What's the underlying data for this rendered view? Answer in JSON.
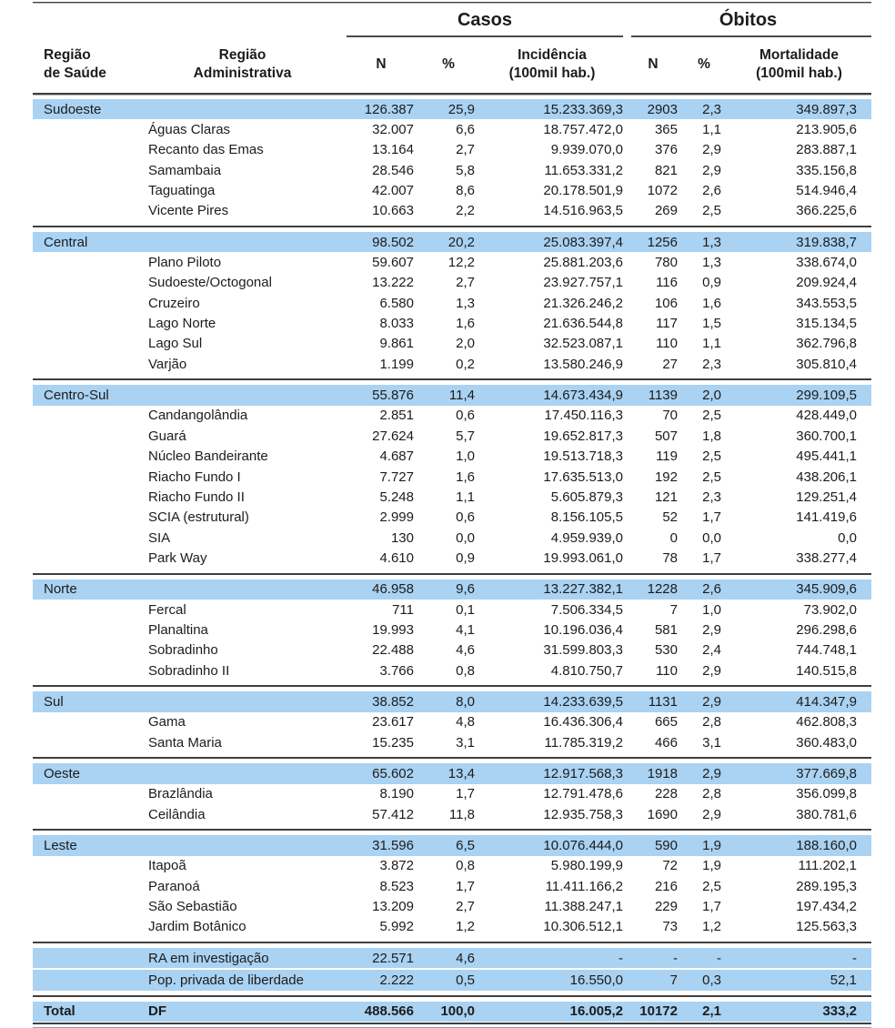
{
  "colors": {
    "highlight": "#aad2f2",
    "rule": "#3f3f3f",
    "rule_light": "#b5b5b5",
    "text": "#1c1c1c"
  },
  "header": {
    "casos": "Casos",
    "obitos": "Óbitos",
    "col_regiao_saude": "Região\nde Saúde",
    "col_regiao_admin": "Região\nAdministrativa",
    "col_n": "N",
    "col_pct": "%",
    "col_incidencia": "Incidência\n(100mil hab.)",
    "col_n2": "N",
    "col_pct2": "%",
    "col_mortalidade": "Mortalidade\n(100mil hab.)"
  },
  "chart_data": {
    "type": "table",
    "column_groups": [
      {
        "label": "Casos",
        "span": 3
      },
      {
        "label": "Óbitos",
        "span": 3
      }
    ],
    "columns": [
      "Região de Saúde",
      "Região Administrativa",
      "N",
      "%",
      "Incidência (100mil hab.)",
      "N",
      "%",
      "Mortalidade (100mil hab.)"
    ],
    "sections": [
      {
        "region": "Sudoeste",
        "summary": [
          "126.387",
          "25,9",
          "15.233.369,3",
          "2903",
          "2,3",
          "349.897,3"
        ],
        "rows": [
          [
            "Águas Claras",
            "32.007",
            "6,6",
            "18.757.472,0",
            "365",
            "1,1",
            "213.905,6"
          ],
          [
            "Recanto das Emas",
            "13.164",
            "2,7",
            "9.939.070,0",
            "376",
            "2,9",
            "283.887,1"
          ],
          [
            "Samambaia",
            "28.546",
            "5,8",
            "11.653.331,2",
            "821",
            "2,9",
            "335.156,8"
          ],
          [
            "Taguatinga",
            "42.007",
            "8,6",
            "20.178.501,9",
            "1072",
            "2,6",
            "514.946,4"
          ],
          [
            "Vicente Pires",
            "10.663",
            "2,2",
            "14.516.963,5",
            "269",
            "2,5",
            "366.225,6"
          ]
        ]
      },
      {
        "region": "Central",
        "summary": [
          "98.502",
          "20,2",
          "25.083.397,4",
          "1256",
          "1,3",
          "319.838,7"
        ],
        "rows": [
          [
            "Plano Piloto",
            "59.607",
            "12,2",
            "25.881.203,6",
            "780",
            "1,3",
            "338.674,0"
          ],
          [
            "Sudoeste/Octogonal",
            "13.222",
            "2,7",
            "23.927.757,1",
            "116",
            "0,9",
            "209.924,4"
          ],
          [
            "Cruzeiro",
            "6.580",
            "1,3",
            "21.326.246,2",
            "106",
            "1,6",
            "343.553,5"
          ],
          [
            "Lago Norte",
            "8.033",
            "1,6",
            "21.636.544,8",
            "117",
            "1,5",
            "315.134,5"
          ],
          [
            "Lago Sul",
            "9.861",
            "2,0",
            "32.523.087,1",
            "110",
            "1,1",
            "362.796,8"
          ],
          [
            "Varjão",
            "1.199",
            "0,2",
            "13.580.246,9",
            "27",
            "2,3",
            "305.810,4"
          ]
        ]
      },
      {
        "region": "Centro-Sul",
        "summary": [
          "55.876",
          "11,4",
          "14.673.434,9",
          "1139",
          "2,0",
          "299.109,5"
        ],
        "rows": [
          [
            "Candangolândia",
            "2.851",
            "0,6",
            "17.450.116,3",
            "70",
            "2,5",
            "428.449,0"
          ],
          [
            "Guará",
            "27.624",
            "5,7",
            "19.652.817,3",
            "507",
            "1,8",
            "360.700,1"
          ],
          [
            "Núcleo Bandeirante",
            "4.687",
            "1,0",
            "19.513.718,3",
            "119",
            "2,5",
            "495.441,1"
          ],
          [
            "Riacho Fundo I",
            "7.727",
            "1,6",
            "17.635.513,0",
            "192",
            "2,5",
            "438.206,1"
          ],
          [
            "Riacho Fundo II",
            "5.248",
            "1,1",
            "5.605.879,3",
            "121",
            "2,3",
            "129.251,4"
          ],
          [
            "SCIA (estrutural)",
            "2.999",
            "0,6",
            "8.156.105,5",
            "52",
            "1,7",
            "141.419,6"
          ],
          [
            "SIA",
            "130",
            "0,0",
            "4.959.939,0",
            "0",
            "0,0",
            "0,0"
          ],
          [
            "Park Way",
            "4.610",
            "0,9",
            "19.993.061,0",
            "78",
            "1,7",
            "338.277,4"
          ]
        ]
      },
      {
        "region": "Norte",
        "summary": [
          "46.958",
          "9,6",
          "13.227.382,1",
          "1228",
          "2,6",
          "345.909,6"
        ],
        "rows": [
          [
            "Fercal",
            "711",
            "0,1",
            "7.506.334,5",
            "7",
            "1,0",
            "73.902,0"
          ],
          [
            "Planaltina",
            "19.993",
            "4,1",
            "10.196.036,4",
            "581",
            "2,9",
            "296.298,6"
          ],
          [
            "Sobradinho",
            "22.488",
            "4,6",
            "31.599.803,3",
            "530",
            "2,4",
            "744.748,1"
          ],
          [
            "Sobradinho II",
            "3.766",
            "0,8",
            "4.810.750,7",
            "110",
            "2,9",
            "140.515,8"
          ]
        ]
      },
      {
        "region": "Sul",
        "summary": [
          "38.852",
          "8,0",
          "14.233.639,5",
          "1131",
          "2,9",
          "414.347,9"
        ],
        "rows": [
          [
            "Gama",
            "23.617",
            "4,8",
            "16.436.306,4",
            "665",
            "2,8",
            "462.808,3"
          ],
          [
            "Santa Maria",
            "15.235",
            "3,1",
            "11.785.319,2",
            "466",
            "3,1",
            "360.483,0"
          ]
        ]
      },
      {
        "region": "Oeste",
        "summary": [
          "65.602",
          "13,4",
          "12.917.568,3",
          "1918",
          "2,9",
          "377.669,8"
        ],
        "rows": [
          [
            "Brazlândia",
            "8.190",
            "1,7",
            "12.791.478,6",
            "228",
            "2,8",
            "356.099,8"
          ],
          [
            "Ceilândia",
            "57.412",
            "11,8",
            "12.935.758,3",
            "1690",
            "2,9",
            "380.781,6"
          ]
        ]
      },
      {
        "region": "Leste",
        "summary": [
          "31.596",
          "6,5",
          "10.076.444,0",
          "590",
          "1,9",
          "188.160,0"
        ],
        "rows": [
          [
            "Itapoã",
            "3.872",
            "0,8",
            "5.980.199,9",
            "72",
            "1,9",
            "111.202,1"
          ],
          [
            "Paranoá",
            "8.523",
            "1,7",
            "11.411.166,2",
            "216",
            "2,5",
            "289.195,3"
          ],
          [
            "São Sebastião",
            "13.209",
            "2,7",
            "11.388.247,1",
            "229",
            "1,7",
            "197.434,2"
          ],
          [
            "Jardim Botânico",
            "5.992",
            "1,2",
            "10.306.512,1",
            "73",
            "1,2",
            "125.563,3"
          ]
        ]
      }
    ],
    "footer_rows": [
      [
        "RA em investigação",
        "22.571",
        "4,6",
        "-",
        "-",
        "-",
        "-"
      ],
      [
        "Pop. privada de liberdade",
        "2.222",
        "0,5",
        "16.550,0",
        "7",
        "0,3",
        "52,1"
      ]
    ],
    "total_row": {
      "label": "Total",
      "name": "DF",
      "values": [
        "488.566",
        "100,0",
        "16.005,2",
        "10172",
        "2,1",
        "333,2"
      ]
    }
  }
}
